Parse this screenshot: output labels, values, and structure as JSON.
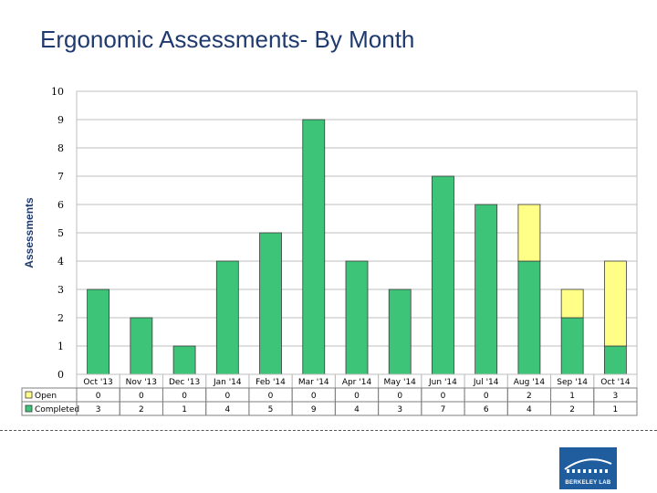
{
  "title": "Ergonomic Assessments- By Month",
  "logo_text": "BERKELEY LAB",
  "colors": {
    "completed": "#3ec478",
    "open": "#ffff88",
    "title": "#1f3a6e"
  },
  "chart_data": {
    "type": "bar",
    "stacked": true,
    "title": "Ergonomic Assessments- By Month",
    "xlabel": "",
    "ylabel": "Assessments",
    "ylim": [
      0,
      10
    ],
    "yticks": [
      0,
      1,
      2,
      3,
      4,
      5,
      6,
      7,
      8,
      9,
      10
    ],
    "grid": true,
    "legend": "data-table",
    "categories": [
      "Oct '13",
      "Nov '13",
      "Dec '13",
      "Jan '14",
      "Feb '14",
      "Mar '14",
      "Apr '14",
      "May '14",
      "Jun '14",
      "Jul '14",
      "Aug '14",
      "Sep '14",
      "Oct '14"
    ],
    "series": [
      {
        "name": "Completed",
        "values": [
          3,
          2,
          1,
          4,
          5,
          9,
          4,
          3,
          7,
          6,
          4,
          2,
          1
        ]
      },
      {
        "name": "Open",
        "values": [
          0,
          0,
          0,
          0,
          0,
          0,
          0,
          0,
          0,
          0,
          2,
          1,
          3
        ]
      }
    ],
    "table_rows": [
      "Open",
      "Completed"
    ]
  }
}
